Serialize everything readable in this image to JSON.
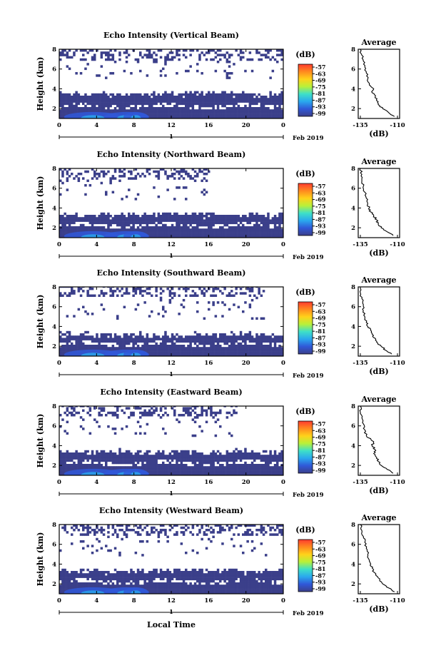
{
  "chart_data": {
    "type": "heatmap",
    "month_label": "Feb 2019",
    "xlabel": "Local Time",
    "day_marker": "1",
    "x_ticks": [
      "0",
      "4",
      "8",
      "12",
      "16",
      "20",
      "0"
    ],
    "xlim_hours": [
      0,
      24
    ],
    "ylabel": "Height (km)",
    "y_ticks": [
      "2",
      "4",
      "6",
      "8"
    ],
    "ylim_km": [
      1,
      8
    ],
    "colorbar": {
      "unit": "(dB)",
      "labels": [
        "-57",
        "-63",
        "-69",
        "-75",
        "-81",
        "-87",
        "-93",
        "-99"
      ],
      "colors": [
        "#ff3b2f",
        "#ff8a1f",
        "#ffd21a",
        "#b8f03a",
        "#3ee0c8",
        "#2aa8ee",
        "#3058d8",
        "#3b3f8a"
      ],
      "range_db": [
        -99,
        -57
      ]
    },
    "profile": {
      "title": "Average",
      "xlabel": "(dB)",
      "x_ticks": [
        "-135",
        "-110"
      ],
      "xlim_db": [
        -135,
        -110
      ],
      "y_ticks": [
        "2",
        "4",
        "6",
        "8"
      ]
    },
    "panels": [
      {
        "title": "Echo Intensity (Vertical Beam)",
        "lower_layer_top_km": 3.5,
        "upper_echo_span_hours": [
          0,
          24
        ],
        "profile_db": [
          [
            1.2,
            -112
          ],
          [
            1.6,
            -116
          ],
          [
            2.0,
            -120
          ],
          [
            2.4,
            -123
          ],
          [
            2.8,
            -124
          ],
          [
            3.2,
            -125
          ],
          [
            3.6,
            -127
          ],
          [
            4.0,
            -126
          ],
          [
            4.4,
            -129
          ],
          [
            5.0,
            -130
          ],
          [
            5.6,
            -131
          ],
          [
            6.2,
            -132
          ],
          [
            6.8,
            -133
          ],
          [
            7.4,
            -134
          ],
          [
            8.0,
            -135
          ]
        ]
      },
      {
        "title": "Echo Intensity (Northward Beam)",
        "lower_layer_top_km": 3.3,
        "upper_echo_span_hours": [
          0,
          16
        ],
        "profile_db": [
          [
            1.2,
            -113
          ],
          [
            1.6,
            -117
          ],
          [
            2.0,
            -121
          ],
          [
            2.4,
            -123
          ],
          [
            2.8,
            -124
          ],
          [
            3.2,
            -126
          ],
          [
            3.6,
            -128
          ],
          [
            4.0,
            -129
          ],
          [
            4.4,
            -130
          ],
          [
            5.0,
            -131
          ],
          [
            5.6,
            -132
          ],
          [
            6.2,
            -133
          ],
          [
            6.8,
            -134
          ],
          [
            7.4,
            -134
          ],
          [
            8.0,
            -135
          ]
        ]
      },
      {
        "title": "Echo Intensity (Southward Beam)",
        "lower_layer_top_km": 3.2,
        "upper_echo_span_hours": [
          0,
          22
        ],
        "profile_db": [
          [
            1.2,
            -114
          ],
          [
            1.6,
            -118
          ],
          [
            2.0,
            -121
          ],
          [
            2.4,
            -124
          ],
          [
            2.8,
            -125
          ],
          [
            3.2,
            -127
          ],
          [
            3.6,
            -128
          ],
          [
            4.0,
            -130
          ],
          [
            4.4,
            -131
          ],
          [
            5.0,
            -132
          ],
          [
            5.6,
            -133
          ],
          [
            6.2,
            -133
          ],
          [
            6.8,
            -134
          ],
          [
            7.4,
            -135
          ],
          [
            8.0,
            -135
          ]
        ]
      },
      {
        "title": "Echo Intensity (Eastward Beam)",
        "lower_layer_top_km": 3.4,
        "upper_echo_span_hours": [
          0,
          19
        ],
        "profile_db": [
          [
            1.2,
            -113
          ],
          [
            1.6,
            -117
          ],
          [
            2.0,
            -121
          ],
          [
            2.4,
            -123
          ],
          [
            2.8,
            -124
          ],
          [
            3.2,
            -126
          ],
          [
            3.6,
            -125
          ],
          [
            4.0,
            -127
          ],
          [
            4.4,
            -126
          ],
          [
            5.0,
            -131
          ],
          [
            5.6,
            -132
          ],
          [
            6.2,
            -133
          ],
          [
            6.8,
            -134
          ],
          [
            7.4,
            -135
          ],
          [
            8.0,
            -135
          ]
        ]
      },
      {
        "title": "Echo Intensity (Westward Beam)",
        "lower_layer_top_km": 3.3,
        "upper_echo_span_hours": [
          0,
          24
        ],
        "profile_db": [
          [
            1.2,
            -112
          ],
          [
            1.6,
            -116
          ],
          [
            2.0,
            -120
          ],
          [
            2.4,
            -122
          ],
          [
            2.8,
            -124
          ],
          [
            3.2,
            -126
          ],
          [
            3.6,
            -127
          ],
          [
            4.0,
            -128
          ],
          [
            4.4,
            -129
          ],
          [
            5.0,
            -130
          ],
          [
            5.6,
            -131
          ],
          [
            6.2,
            -132
          ],
          [
            6.8,
            -133
          ],
          [
            7.4,
            -134
          ],
          [
            8.0,
            -135
          ]
        ]
      }
    ]
  }
}
